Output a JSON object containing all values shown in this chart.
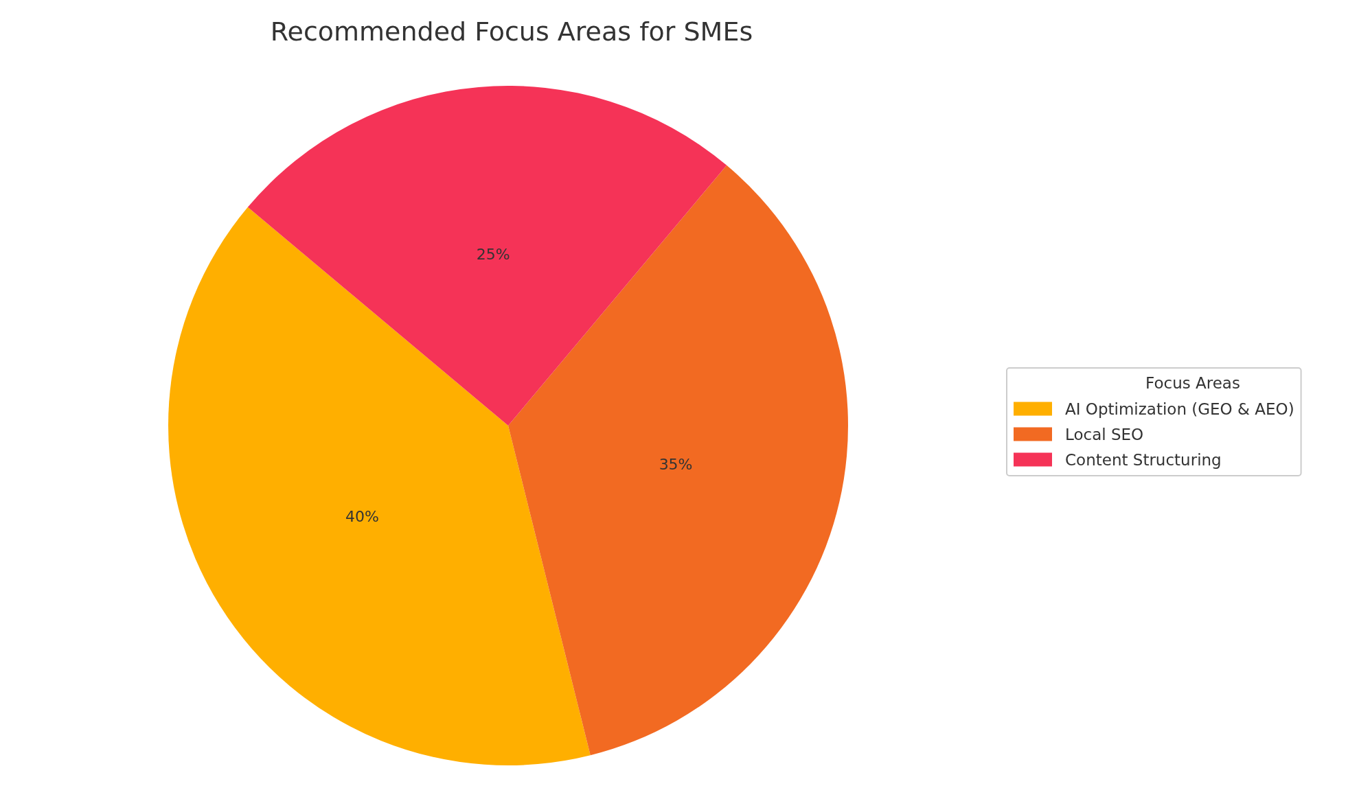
{
  "chart_data": {
    "type": "pie",
    "title": "Recommended Focus Areas for SMEs",
    "legend_title": "Focus Areas",
    "categories": [
      "AI Optimization (GEO & AEO)",
      "Local SEO",
      "Content Structuring"
    ],
    "values": [
      40,
      35,
      25
    ],
    "colors": [
      "#ffaf00",
      "#f26a22",
      "#f53357"
    ],
    "value_labels": [
      "40%",
      "35%",
      "25%"
    ],
    "legend": "right"
  }
}
